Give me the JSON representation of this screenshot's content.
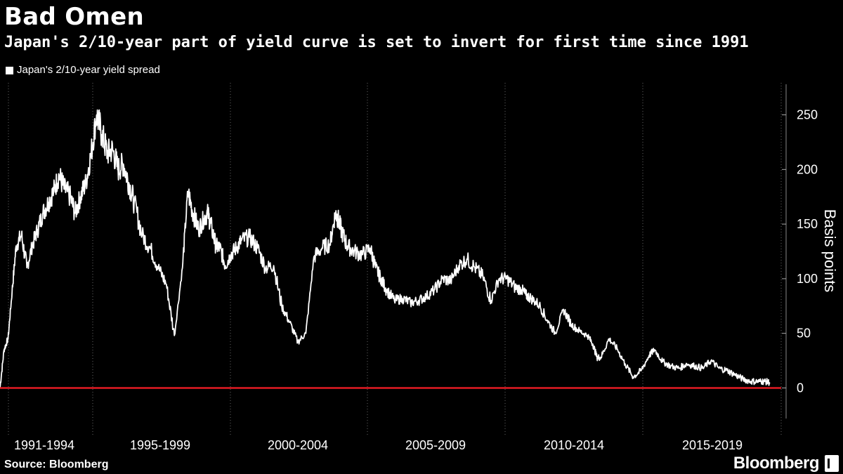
{
  "header": {
    "title": "Bad Omen",
    "subtitle": "Japan's 2/10-year part of yield curve is set to invert for first time since 1991"
  },
  "footer": {
    "source": "Source: Bloomberg",
    "brand": "Bloomberg"
  },
  "colors": {
    "background": "#000000",
    "series": "#ffffff",
    "zero_line": "#e31b23",
    "gridline": "#666666"
  },
  "chart_data": {
    "type": "line",
    "title": "Bad Omen",
    "subtitle": "Japan's 2/10-year part of yield curve is set to invert for first time since 1991",
    "ylabel": "Basis points",
    "ylim": [
      -28,
      278
    ],
    "y_ticks": [
      0,
      50,
      100,
      150,
      200,
      250
    ],
    "grid": "vertical-dotted-at-period-boundaries",
    "legend_position": "top-left",
    "x_period_labels": [
      "1991-1994",
      "1995-1999",
      "2000-2004",
      "2005-2009",
      "2010-2014",
      "2015-2019"
    ],
    "x_range": [
      1991.0,
      2019.75
    ],
    "reference_line": {
      "y": 0,
      "color": "#e31b23"
    },
    "series": [
      {
        "name": "Japan's 2/10-year yield spread",
        "color": "#ffffff",
        "x": [
          1991.0,
          1991.15,
          1991.3,
          1991.45,
          1991.6,
          1991.8,
          1992.0,
          1992.2,
          1992.4,
          1992.6,
          1992.8,
          1993.0,
          1993.2,
          1993.4,
          1993.6,
          1993.8,
          1994.0,
          1994.2,
          1994.4,
          1994.6,
          1994.8,
          1995.0,
          1995.2,
          1995.4,
          1995.6,
          1995.8,
          1996.0,
          1996.3,
          1996.6,
          1996.9,
          1997.2,
          1997.5,
          1997.8,
          1998.0,
          1998.2,
          1998.4,
          1998.6,
          1998.75,
          1998.9,
          1999.05,
          1999.2,
          1999.4,
          1999.6,
          1999.8,
          2000.0,
          2000.3,
          2000.6,
          2000.9,
          2001.2,
          2001.5,
          2001.8,
          2002.1,
          2002.4,
          2002.7,
          2003.0,
          2003.3,
          2003.5,
          2003.6,
          2003.75,
          2003.95,
          2004.2,
          2004.5,
          2004.8,
          2005.0,
          2005.2,
          2005.4,
          2005.7,
          2006.0,
          2006.3,
          2006.6,
          2006.9,
          2007.2,
          2007.5,
          2007.8,
          2008.1,
          2008.4,
          2008.7,
          2009.0,
          2009.3,
          2009.6,
          2009.9,
          2010.2,
          2010.45,
          2010.6,
          2010.8,
          2011.1,
          2011.4,
          2011.7,
          2012.0,
          2012.3,
          2012.6,
          2012.9,
          2013.1,
          2013.25,
          2013.4,
          2013.7,
          2014.0,
          2014.3,
          2014.6,
          2014.9,
          2015.2,
          2015.4,
          2015.7,
          2016.0,
          2016.3,
          2016.6,
          2016.9,
          2017.2,
          2017.5,
          2017.8,
          2018.1,
          2018.4,
          2018.7,
          2019.0,
          2019.3,
          2019.5,
          2019.7
        ],
        "values": [
          0,
          35,
          45,
          88,
          130,
          140,
          110,
          130,
          145,
          160,
          170,
          180,
          195,
          182,
          176,
          160,
          175,
          188,
          215,
          250,
          232,
          215,
          218,
          200,
          205,
          188,
          170,
          140,
          128,
          110,
          95,
          48,
          110,
          180,
          160,
          145,
          155,
          160,
          145,
          130,
          128,
          112,
          122,
          128,
          135,
          138,
          128,
          110,
          112,
          75,
          60,
          42,
          50,
          120,
          128,
          132,
          160,
          155,
          142,
          130,
          125,
          122,
          128,
          110,
          100,
          90,
          80,
          82,
          78,
          80,
          84,
          90,
          100,
          98,
          112,
          118,
          110,
          102,
          80,
          100,
          100,
          92,
          90,
          85,
          82,
          76,
          62,
          50,
          72,
          58,
          52,
          48,
          40,
          28,
          28,
          45,
          36,
          22,
          10,
          16,
          30,
          35,
          24,
          20,
          18,
          22,
          20,
          18,
          25,
          18,
          16,
          12,
          8,
          6,
          6,
          6,
          5
        ]
      }
    ]
  }
}
